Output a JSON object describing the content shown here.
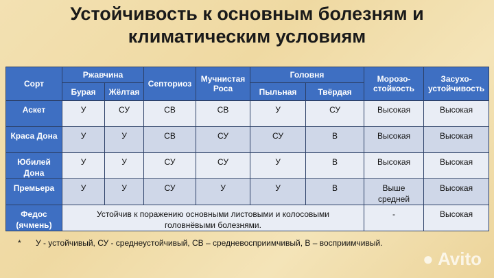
{
  "title": [
    "Устойчивость к основным болезням и",
    "климатическим условиям"
  ],
  "headers": {
    "sort": "Сорт",
    "rust": "Ржавчина",
    "brown": "Бурая",
    "yellow": "Жёлтая",
    "septoria": "Септориоз",
    "mildew": "Мучнистая Роса",
    "smut": "Головня",
    "loose": "Пыльная",
    "hard": "Твёрдая",
    "frost": "Морозо-стойкость",
    "drought": "Засухо-устойчивость"
  },
  "rows": [
    {
      "name": "Аскет",
      "cells": [
        "У",
        "СУ",
        "СВ",
        "СВ",
        "У",
        "СУ",
        "Высокая",
        "Высокая"
      ]
    },
    {
      "name": "Краса Дона",
      "cells": [
        "У",
        "У",
        "СВ",
        "СУ",
        "СУ",
        "В",
        "Высокая",
        "Высокая"
      ]
    },
    {
      "name": "Юбилей Дона",
      "cells": [
        "У",
        "У",
        "СУ",
        "СУ",
        "У",
        "В",
        "Высокая",
        "Высокая"
      ]
    },
    {
      "name": "Премьера",
      "cells": [
        "У",
        "У",
        "СУ",
        "У",
        "У",
        "В",
        "Выше средней",
        "Высокая"
      ]
    }
  ],
  "fedos": {
    "name": "Федос (ячмень)",
    "text": "Устойчив к поражению основными листовыми и колосовыми головнёвыми болезнями.",
    "frost": "-",
    "drought": "Высокая"
  },
  "note": {
    "star": "*",
    "text": "У - устойчивый, СУ - среднеустойчивый, СВ – средневосприимчивый, В – восприимчивый."
  },
  "watermark": "Avito"
}
